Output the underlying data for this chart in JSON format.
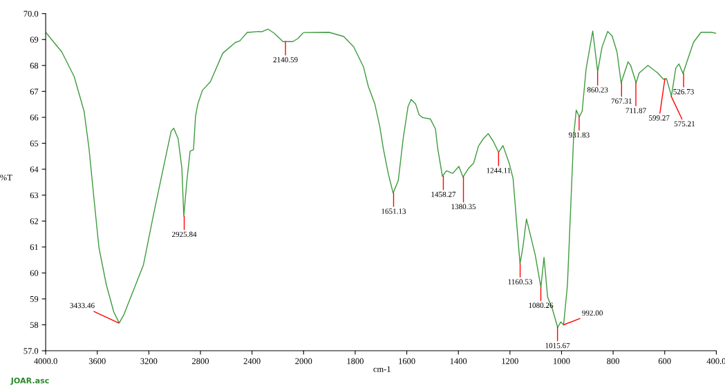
{
  "chart_data": [
    {
      "type": "line",
      "ylabel": "%T",
      "xlim": [
        4000,
        2000
      ],
      "xticks": [
        {
          "value": 4000,
          "label": "4000.0"
        },
        3600,
        3200,
        2800,
        2400,
        2000
      ],
      "ylim": [
        57,
        70
      ],
      "yticks": [
        {
          "value": 57,
          "label": "57.0"
        },
        58,
        59,
        60,
        61,
        62,
        63,
        64,
        65,
        66,
        67,
        68,
        69,
        {
          "value": 70,
          "label": "70.0"
        }
      ],
      "marker": "none",
      "line_style": "solid",
      "series": [
        {
          "color": "#3c9a3c",
          "x": [
            4000,
            3875,
            3779,
            3702,
            3664,
            3626,
            3587,
            3530,
            3472,
            3430,
            3392,
            3319,
            3242,
            3165,
            3088,
            3027,
            3007,
            2973,
            2944,
            2929,
            2905,
            2880,
            2854,
            2838,
            2820,
            2785,
            2723,
            2627,
            2531,
            2494,
            2436,
            2419,
            2352,
            2323,
            2275,
            2227,
            2160,
            2083,
            2044,
            2000
          ],
          "values": [
            69.28,
            68.52,
            67.57,
            66.23,
            64.8,
            62.89,
            60.98,
            59.55,
            58.5,
            58.07,
            58.41,
            59.34,
            60.31,
            62.22,
            64.04,
            65.47,
            65.58,
            65.18,
            64.04,
            62.19,
            63.56,
            64.7,
            64.75,
            66.04,
            66.52,
            67.04,
            67.37,
            68.47,
            68.88,
            68.95,
            69.28,
            69.28,
            69.31,
            69.3,
            69.4,
            69.24,
            68.92,
            68.92,
            69.04,
            69.27
          ]
        }
      ],
      "annotations": [
        {
          "text": "3433.46",
          "x": 3433.46,
          "y": 58.07
        },
        {
          "text": "2925.84",
          "x": 2925.84,
          "y": 62.19
        },
        {
          "text": "2140.59",
          "x": 2140.59,
          "y": 68.92
        },
        "JOAR.asc"
      ]
    },
    {
      "type": "line",
      "xlabel": "cm-1",
      "tick_labels": "x",
      "xlim": [
        2000,
        400
      ],
      "xticks": [
        1800,
        1600,
        1400,
        1200,
        1000,
        800,
        600,
        {
          "value": 400,
          "label": "400.0"
        }
      ],
      "ylim": [
        57,
        70
      ],
      "marker": "none",
      "line_style": "solid",
      "series": [
        {
          "color": "#3c9a3c",
          "x": [
            2000,
            1902,
            1845,
            1806,
            1768,
            1749,
            1724,
            1705,
            1691,
            1672,
            1653,
            1633,
            1614,
            1595,
            1583,
            1566,
            1552,
            1538,
            1509,
            1489,
            1480,
            1462,
            1446,
            1422,
            1398,
            1382,
            1360,
            1341,
            1322,
            1303,
            1284,
            1265,
            1244,
            1227,
            1203,
            1188,
            1174,
            1161,
            1150,
            1136,
            1116,
            1102,
            1080,
            1068,
            1054,
            1035,
            1015,
            1003,
            992,
            977,
            963,
            953,
            943,
            931,
            920,
            905,
            879,
            860,
            843,
            821,
            804,
            785,
            769,
            742,
            732,
            711,
            699,
            665,
            627,
            605,
            593,
            574,
            557,
            545,
            529,
            511,
            488,
            459,
            420,
            401
          ],
          "values": [
            69.27,
            69.28,
            69.12,
            68.72,
            67.95,
            67.19,
            66.52,
            65.66,
            64.8,
            63.84,
            63.08,
            63.56,
            65.18,
            66.42,
            66.69,
            66.52,
            66.09,
            65.99,
            65.94,
            65.56,
            64.8,
            63.73,
            63.94,
            63.84,
            64.11,
            63.7,
            64.04,
            64.23,
            64.89,
            65.18,
            65.37,
            65.08,
            64.65,
            64.91,
            64.23,
            63.65,
            61.93,
            60.36,
            60.98,
            62.08,
            61.27,
            60.69,
            59.45,
            60.6,
            59.07,
            58.59,
            57.9,
            58.11,
            58.0,
            59.55,
            62.89,
            65.28,
            66.28,
            66.02,
            66.23,
            67.85,
            69.33,
            67.76,
            68.71,
            69.31,
            69.14,
            68.52,
            67.33,
            68.14,
            68.0,
            67.33,
            67.71,
            68.0,
            67.71,
            67.47,
            67.49,
            66.82,
            67.9,
            68.06,
            67.69,
            68.23,
            68.9,
            69.28,
            69.28,
            69.24
          ]
        }
      ],
      "annotations": [
        {
          "text": "1651.13",
          "x": 1651.13,
          "y": 63.08
        },
        {
          "text": "1458.27",
          "x": 1458.27,
          "y": 63.73
        },
        {
          "text": "1380.35",
          "x": 1380.35,
          "y": 63.7
        },
        {
          "text": "1244.11",
          "x": 1244.11,
          "y": 64.65
        },
        {
          "text": "1160.53",
          "x": 1160.53,
          "y": 60.36
        },
        {
          "text": "1080.26",
          "x": 1080.26,
          "y": 59.45
        },
        {
          "text": "1015.67",
          "x": 1015.67,
          "y": 57.9
        },
        {
          "text": "992.00",
          "x": 992.0,
          "y": 58.0
        },
        {
          "text": "931.83",
          "x": 931.83,
          "y": 66.02
        },
        {
          "text": "860.23",
          "x": 860.23,
          "y": 67.76
        },
        {
          "text": "767.31",
          "x": 767.31,
          "y": 67.33
        },
        {
          "text": "711.87",
          "x": 711.87,
          "y": 67.33
        },
        {
          "text": "599.27",
          "x": 599.27,
          "y": 67.49
        },
        {
          "text": "575.21",
          "x": 575.21,
          "y": 66.82
        },
        {
          "text": "526.73",
          "x": 526.73,
          "y": 67.69
        }
      ]
    }
  ]
}
